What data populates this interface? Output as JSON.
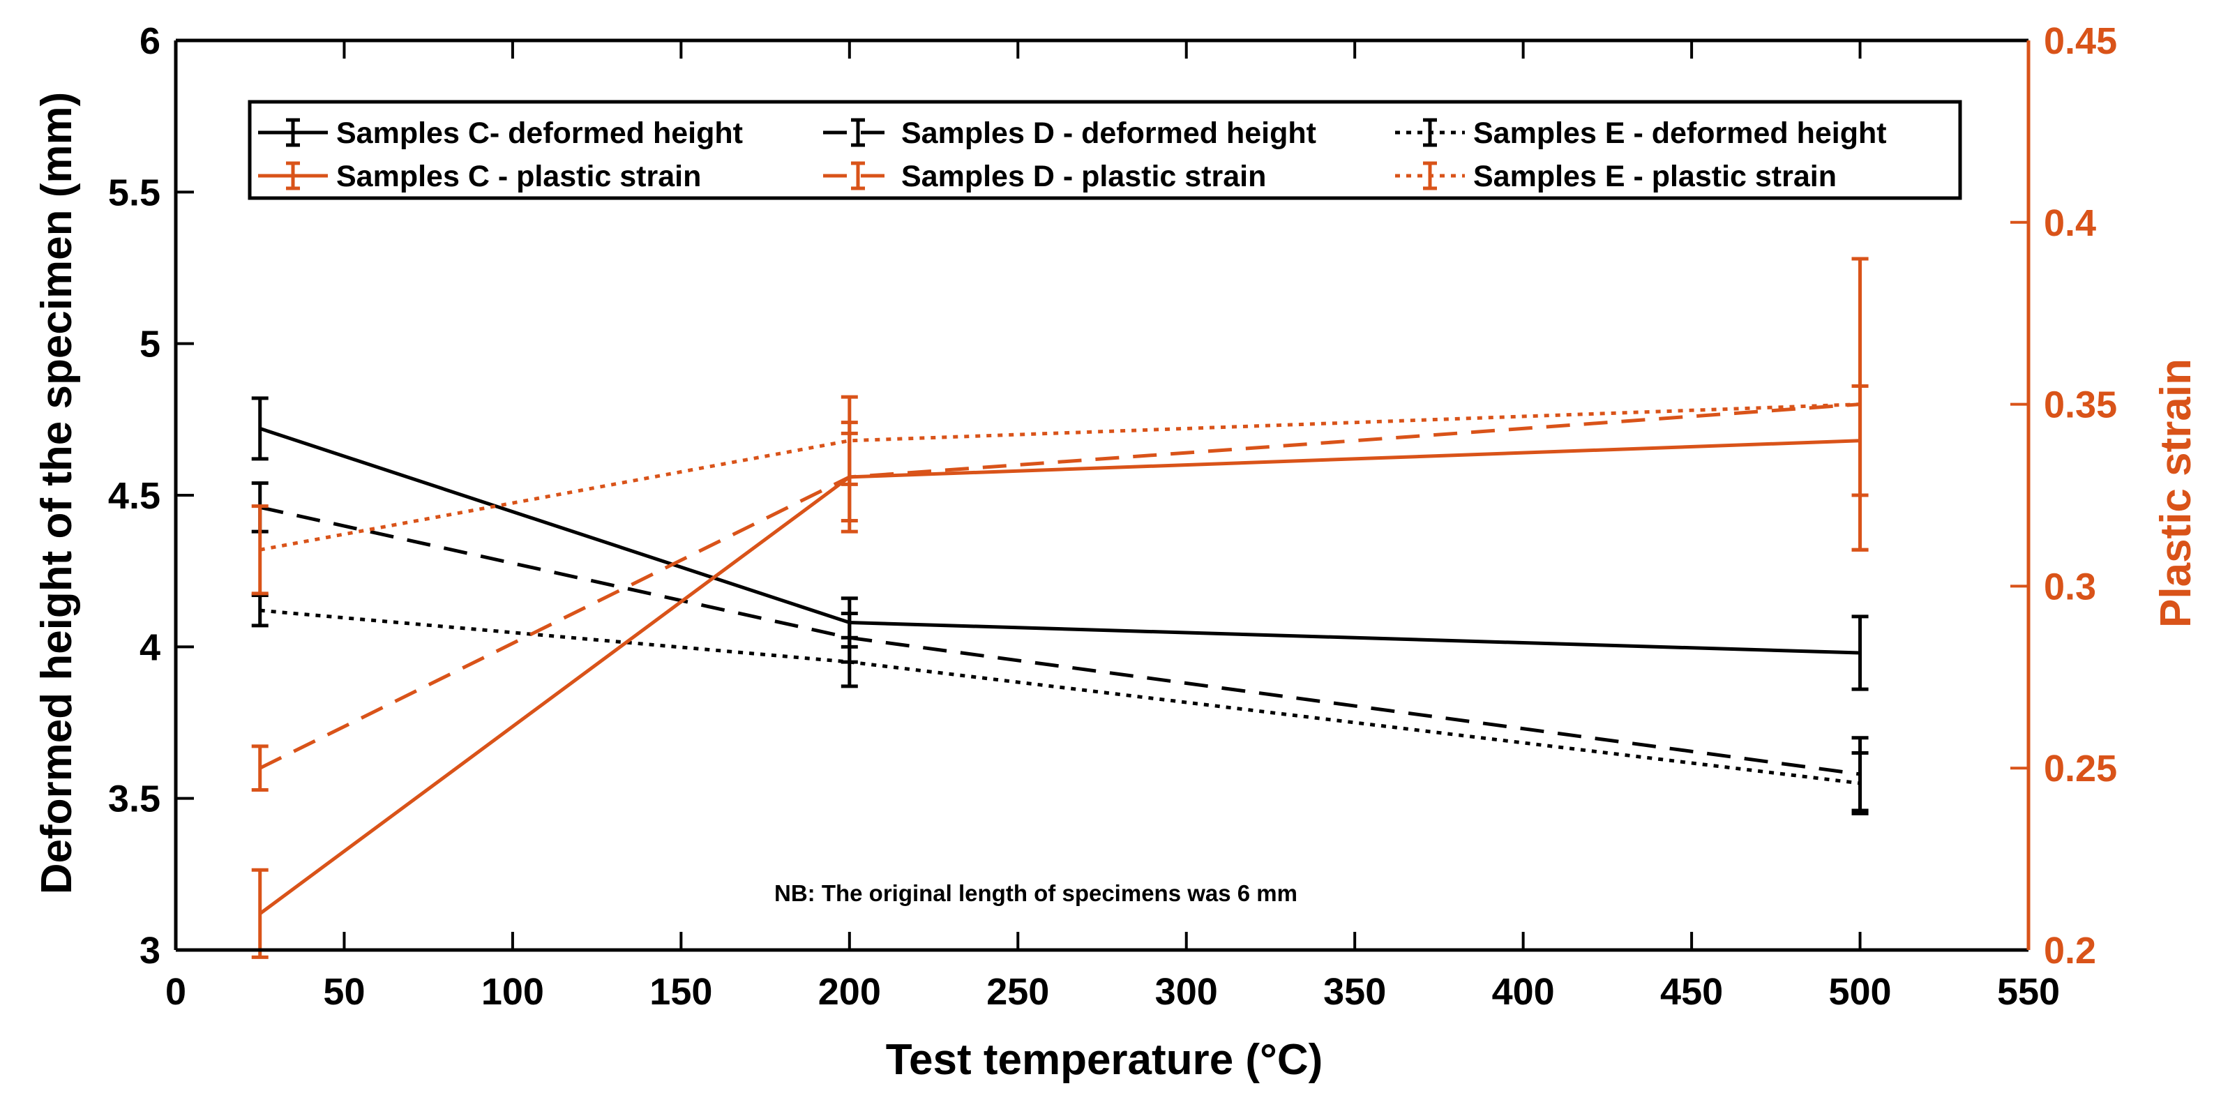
{
  "chart_data": {
    "type": "line",
    "xlabel": "Test temperature (°C)",
    "ylabel_left": "Deformed height of the specimen (mm)",
    "ylabel_right": "Plastic strain",
    "xlim": [
      0,
      550
    ],
    "ylim_left": [
      3,
      6
    ],
    "ylim_right": [
      0.2,
      0.45
    ],
    "x_ticks": [
      "0",
      "50",
      "100",
      "150",
      "200",
      "250",
      "300",
      "350",
      "400",
      "450",
      "500",
      "550"
    ],
    "y_left_ticks": [
      "3",
      "3.5",
      "4",
      "4.5",
      "5",
      "5.5",
      "6"
    ],
    "y_right_ticks": [
      "0.2",
      "0.25",
      "0.3",
      "0.35",
      "0.4",
      "0.45"
    ],
    "x": [
      25,
      200,
      500
    ],
    "annotation": "NB: The original length of specimens was 6 mm",
    "legend_position": "top",
    "colors": {
      "black": "#000000",
      "orange": "#D95319"
    },
    "series": [
      {
        "name": "Samples C- deformed height",
        "axis": "left",
        "color": "#000000",
        "style": "solid",
        "values": [
          4.72,
          4.08,
          3.98
        ],
        "errors": [
          0.1,
          0.08,
          0.12
        ]
      },
      {
        "name": "Samples D - deformed height",
        "axis": "left",
        "color": "#000000",
        "style": "dashed",
        "values": [
          4.46,
          4.03,
          3.58
        ],
        "errors": [
          0.08,
          0.08,
          0.12
        ]
      },
      {
        "name": "Samples E - deformed height",
        "axis": "left",
        "color": "#000000",
        "style": "dotted",
        "values": [
          4.12,
          3.95,
          3.55
        ],
        "errors": [
          0.05,
          0.08,
          0.1
        ]
      },
      {
        "name": "Samples C - plastic strain",
        "axis": "right",
        "color": "#D95319",
        "style": "solid",
        "values": [
          0.21,
          0.33,
          0.34
        ],
        "errors": [
          0.012,
          0.015,
          0.015
        ]
      },
      {
        "name": "Samples D - plastic strain",
        "axis": "right",
        "color": "#D95319",
        "style": "dashed",
        "values": [
          0.25,
          0.33,
          0.35
        ],
        "errors": [
          0.006,
          0.012,
          0.04
        ]
      },
      {
        "name": "Samples E - plastic strain",
        "axis": "right",
        "color": "#D95319",
        "style": "dotted",
        "values": [
          0.31,
          0.34,
          0.35
        ],
        "errors": [
          0.012,
          0.012,
          0.04
        ]
      }
    ]
  }
}
